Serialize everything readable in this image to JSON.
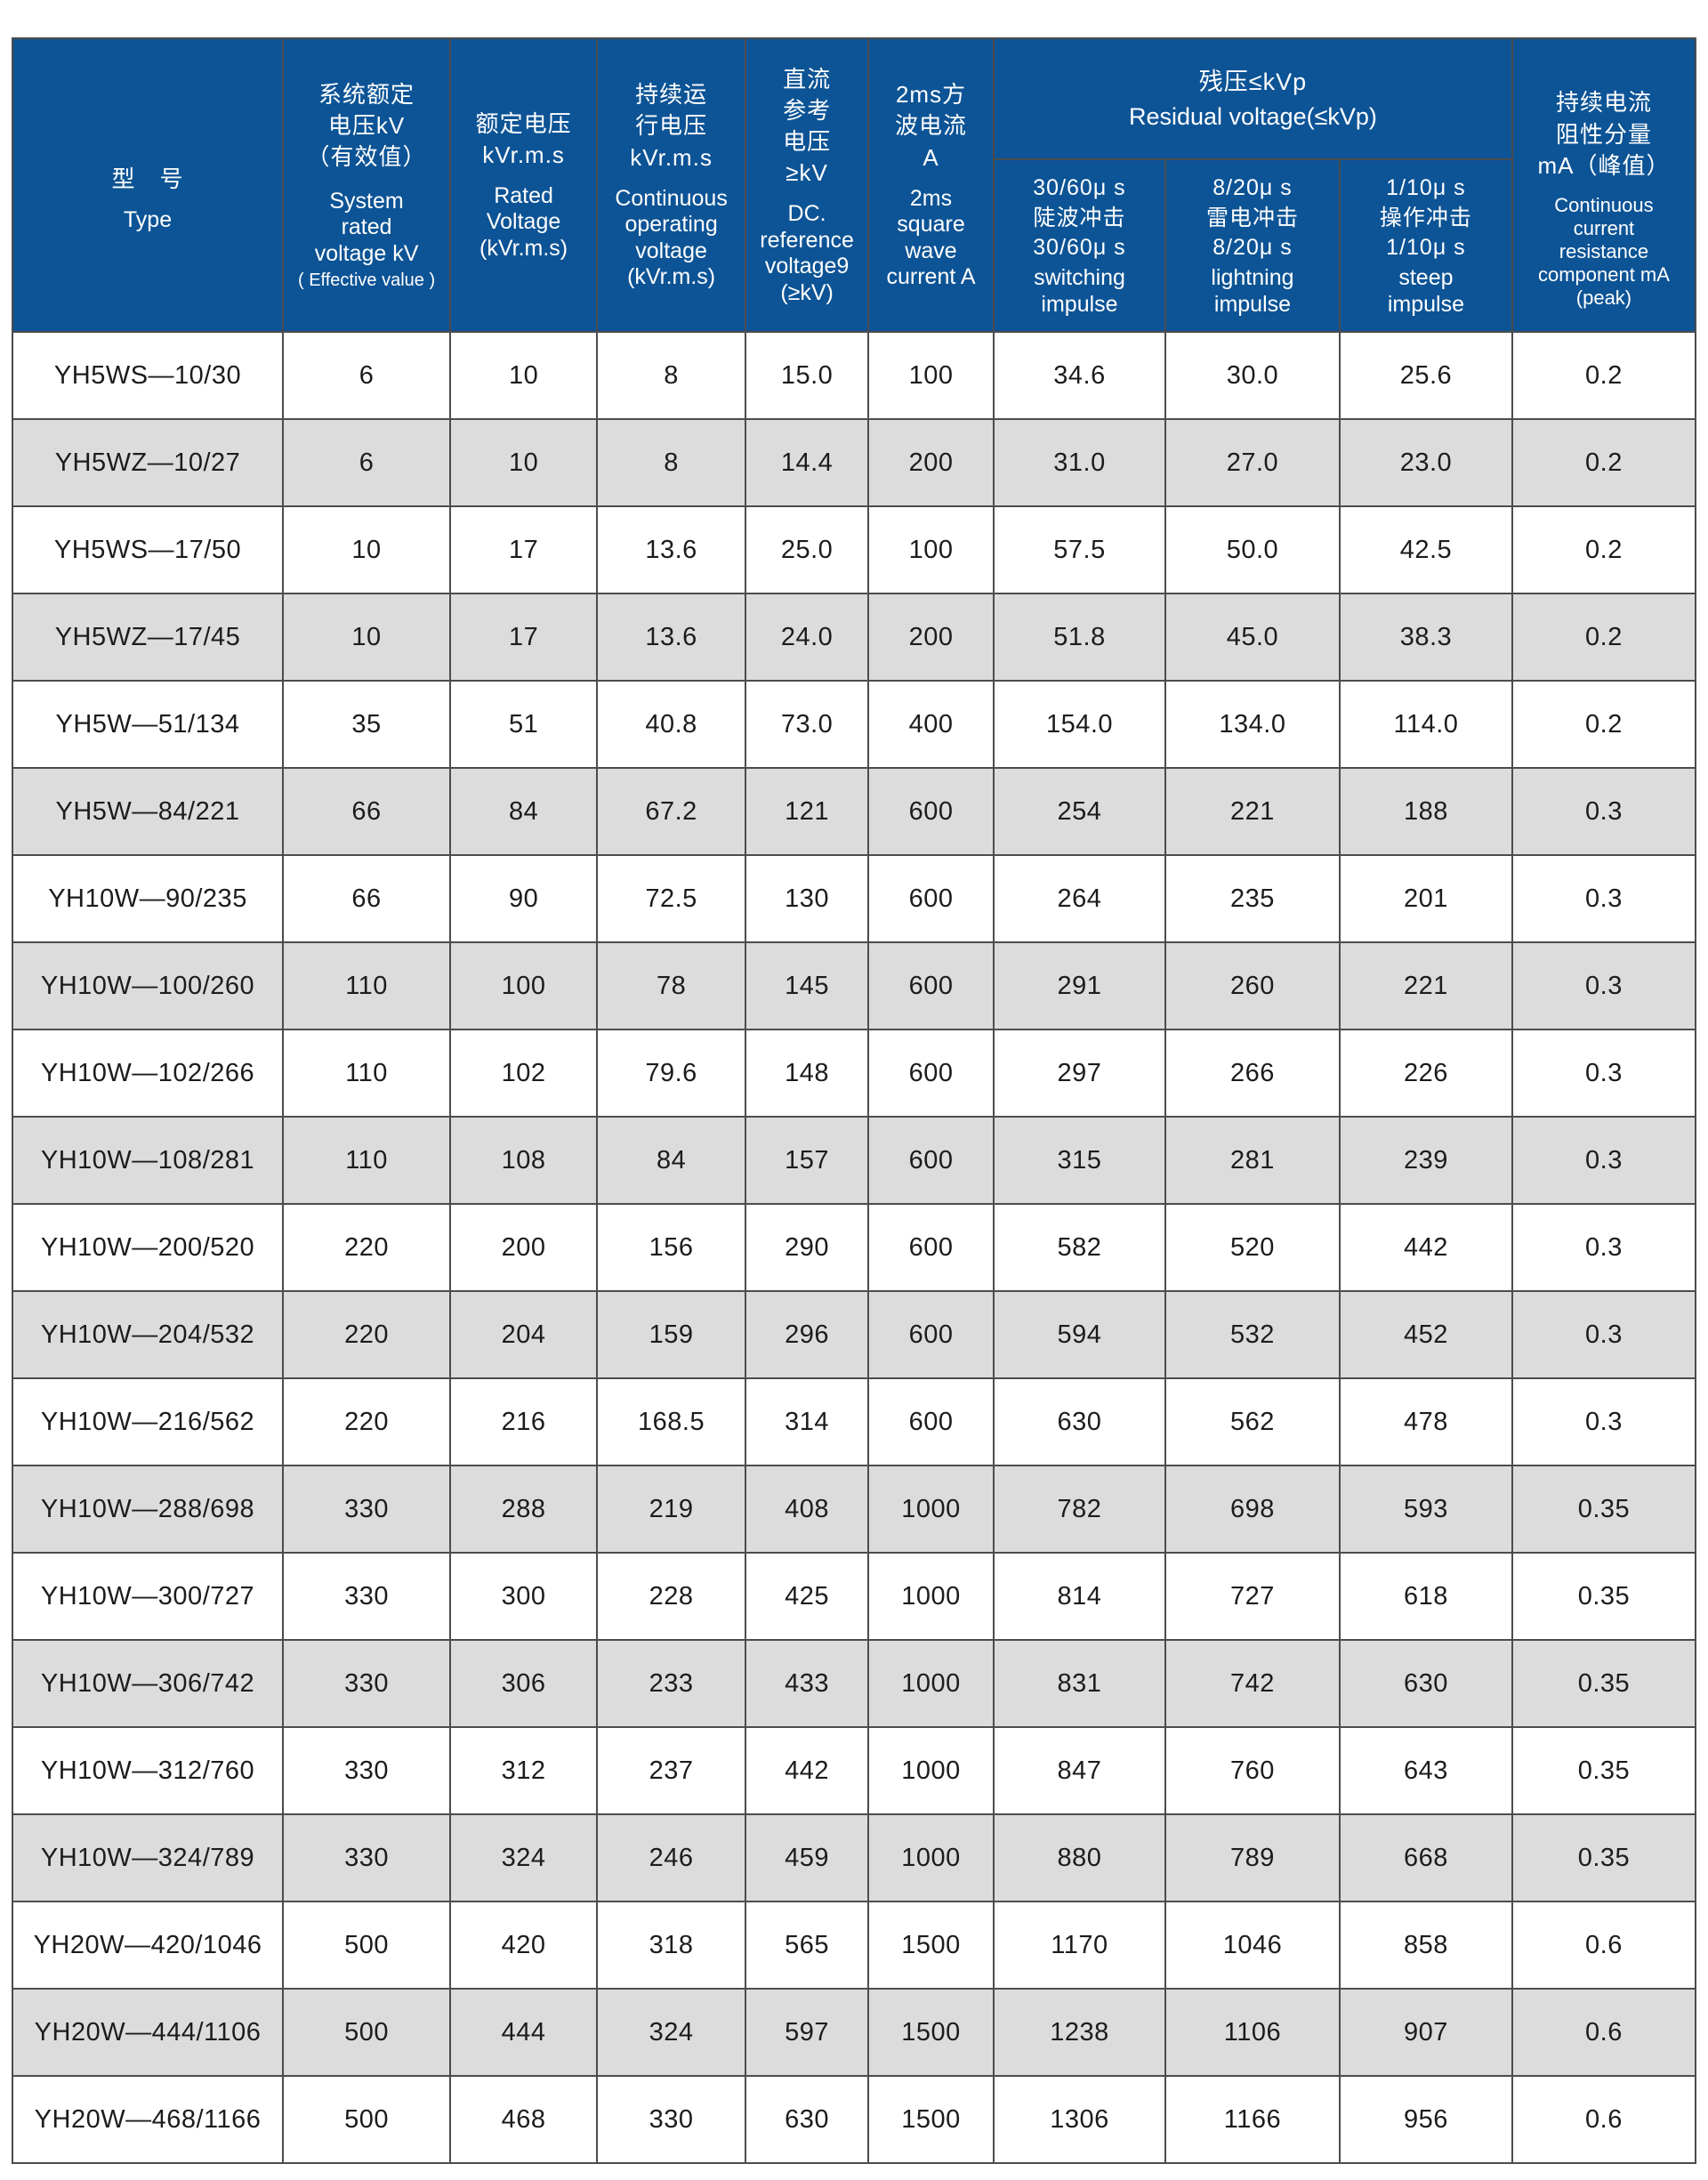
{
  "colors": {
    "header_bg": "#0D5496",
    "header_text": "#FFFFFF",
    "row_bg": "#FFFFFF",
    "row_alt_bg": "#DCDCDC",
    "grid": "#4C4C4C",
    "cell_text": "#1C1C1C"
  },
  "header": {
    "type": {
      "zh": "型　号",
      "en": "Type"
    },
    "system_voltage": {
      "zh": [
        "系统额定",
        "电压kV",
        "（有效值）"
      ],
      "en": [
        "System",
        "rated",
        "voltage kV"
      ],
      "note": "( Effective value )"
    },
    "rated_voltage": {
      "zh": [
        "额定电压",
        "kVr.m.s"
      ],
      "en": [
        "Rated",
        "Voltage",
        "(kVr.m.s)"
      ]
    },
    "continuous_operating_voltage": {
      "zh": [
        "持续运",
        "行电压",
        "kVr.m.s"
      ],
      "en": [
        "Continuous",
        "operating",
        "voltage",
        "(kVr.m.s)"
      ]
    },
    "dc_reference_voltage": {
      "zh": [
        "直流",
        "参考",
        "电压",
        "≥kV"
      ],
      "en": [
        "DC.",
        "reference",
        "voltage9",
        "(≥kV)"
      ]
    },
    "square_wave_current": {
      "zh": [
        "2ms方",
        "波电流",
        "A"
      ],
      "en": [
        "2ms",
        "square",
        "wave",
        "current A"
      ]
    },
    "residual_voltage_group": {
      "zh": "残压≤kVp",
      "en": "Residual voltage(≤kVp)"
    },
    "switching_impulse": {
      "zh": [
        "30/60μ s",
        "陡波冲击",
        "30/60μ s"
      ],
      "en": [
        "switching",
        "impulse"
      ]
    },
    "lightning_impulse": {
      "zh": [
        "8/20μ s",
        "雷电冲击",
        "8/20μ s"
      ],
      "en": [
        "lightning",
        "impulse"
      ]
    },
    "steep_impulse": {
      "zh": [
        "1/10μ s",
        "操作冲击",
        "1/10μ s"
      ],
      "en": [
        "steep",
        "impulse"
      ]
    },
    "continuous_current": {
      "zh": [
        "持续电流",
        "阻性分量",
        "mA（峰值）"
      ],
      "en": [
        "Continuous",
        "current",
        "resistance",
        "component mA",
        "(peak)"
      ]
    }
  },
  "rows": [
    [
      "YH5WS—10/30",
      "6",
      "10",
      "8",
      "15.0",
      "100",
      "34.6",
      "30.0",
      "25.6",
      "0.2"
    ],
    [
      "YH5WZ—10/27",
      "6",
      "10",
      "8",
      "14.4",
      "200",
      "31.0",
      "27.0",
      "23.0",
      "0.2"
    ],
    [
      "YH5WS—17/50",
      "10",
      "17",
      "13.6",
      "25.0",
      "100",
      "57.5",
      "50.0",
      "42.5",
      "0.2"
    ],
    [
      "YH5WZ—17/45",
      "10",
      "17",
      "13.6",
      "24.0",
      "200",
      "51.8",
      "45.0",
      "38.3",
      "0.2"
    ],
    [
      "YH5W—51/134",
      "35",
      "51",
      "40.8",
      "73.0",
      "400",
      "154.0",
      "134.0",
      "114.0",
      "0.2"
    ],
    [
      "YH5W—84/221",
      "66",
      "84",
      "67.2",
      "121",
      "600",
      "254",
      "221",
      "188",
      "0.3"
    ],
    [
      "YH10W—90/235",
      "66",
      "90",
      "72.5",
      "130",
      "600",
      "264",
      "235",
      "201",
      "0.3"
    ],
    [
      "YH10W—100/260",
      "110",
      "100",
      "78",
      "145",
      "600",
      "291",
      "260",
      "221",
      "0.3"
    ],
    [
      "YH10W—102/266",
      "110",
      "102",
      "79.6",
      "148",
      "600",
      "297",
      "266",
      "226",
      "0.3"
    ],
    [
      "YH10W—108/281",
      "110",
      "108",
      "84",
      "157",
      "600",
      "315",
      "281",
      "239",
      "0.3"
    ],
    [
      "YH10W—200/520",
      "220",
      "200",
      "156",
      "290",
      "600",
      "582",
      "520",
      "442",
      "0.3"
    ],
    [
      "YH10W—204/532",
      "220",
      "204",
      "159",
      "296",
      "600",
      "594",
      "532",
      "452",
      "0.3"
    ],
    [
      "YH10W—216/562",
      "220",
      "216",
      "168.5",
      "314",
      "600",
      "630",
      "562",
      "478",
      "0.3"
    ],
    [
      "YH10W—288/698",
      "330",
      "288",
      "219",
      "408",
      "1000",
      "782",
      "698",
      "593",
      "0.35"
    ],
    [
      "YH10W—300/727",
      "330",
      "300",
      "228",
      "425",
      "1000",
      "814",
      "727",
      "618",
      "0.35"
    ],
    [
      "YH10W—306/742",
      "330",
      "306",
      "233",
      "433",
      "1000",
      "831",
      "742",
      "630",
      "0.35"
    ],
    [
      "YH10W—312/760",
      "330",
      "312",
      "237",
      "442",
      "1000",
      "847",
      "760",
      "643",
      "0.35"
    ],
    [
      "YH10W—324/789",
      "330",
      "324",
      "246",
      "459",
      "1000",
      "880",
      "789",
      "668",
      "0.35"
    ],
    [
      "YH20W—420/1046",
      "500",
      "420",
      "318",
      "565",
      "1500",
      "1170",
      "1046",
      "858",
      "0.6"
    ],
    [
      "YH20W—444/1106",
      "500",
      "444",
      "324",
      "597",
      "1500",
      "1238",
      "1106",
      "907",
      "0.6"
    ],
    [
      "YH20W—468/1166",
      "500",
      "468",
      "330",
      "630",
      "1500",
      "1306",
      "1166",
      "956",
      "0.6"
    ]
  ]
}
